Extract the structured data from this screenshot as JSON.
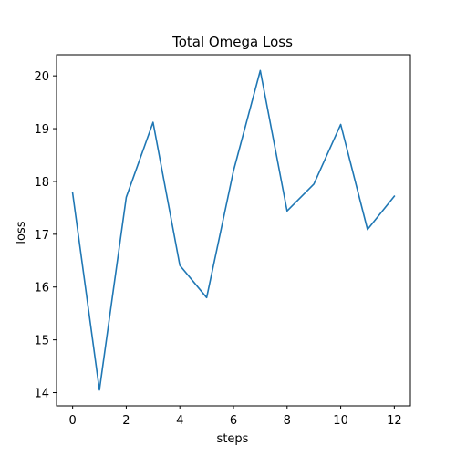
{
  "chart_data": {
    "type": "line",
    "title": "Total Omega Loss",
    "xlabel": "steps",
    "ylabel": "loss",
    "x": [
      0,
      1,
      2,
      3,
      4,
      5,
      6,
      7,
      8,
      9,
      10,
      11,
      12
    ],
    "series": [
      {
        "values": [
          17.78,
          14.05,
          17.7,
          19.12,
          16.41,
          15.8,
          18.2,
          20.1,
          17.44,
          17.95,
          19.08,
          17.09,
          17.72
        ]
      }
    ],
    "xlim": [
      -0.6,
      12.6
    ],
    "ylim": [
      13.75,
      20.4
    ],
    "xticks": [
      0,
      2,
      4,
      6,
      8,
      10,
      12
    ],
    "yticks": [
      14,
      15,
      16,
      17,
      18,
      19,
      20
    ],
    "grid": false,
    "line_color": "#1f77b4"
  }
}
